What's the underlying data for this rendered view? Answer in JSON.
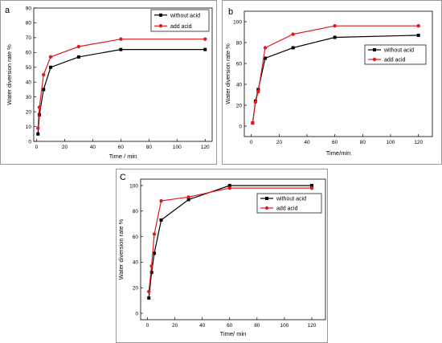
{
  "chart_data": [
    {
      "panel": "a",
      "type": "line",
      "xlabel": "Time / min",
      "ylabel": "Water diversion rate %",
      "xlim": [
        -2,
        125
      ],
      "ylim": [
        0,
        90
      ],
      "xticks": [
        0,
        20,
        40,
        60,
        80,
        100,
        120
      ],
      "yticks": [
        0,
        10,
        20,
        30,
        40,
        50,
        60,
        70,
        80,
        90
      ],
      "legend_position": "top-right",
      "series": [
        {
          "name": "without acid",
          "color": "#000000",
          "x": [
            1,
            2,
            5,
            10,
            30,
            60,
            120
          ],
          "y": [
            5,
            18,
            35,
            50,
            57,
            62,
            62
          ]
        },
        {
          "name": "add acid",
          "color": "#e31a1c",
          "x": [
            1,
            2,
            5,
            10,
            30,
            60,
            120
          ],
          "y": [
            9,
            23,
            45,
            57,
            64,
            69,
            69
          ]
        }
      ]
    },
    {
      "panel": "b",
      "type": "line",
      "xlabel": "Time/min",
      "ylabel": "Water diversion rate %",
      "xlim": [
        -5,
        130
      ],
      "ylim": [
        -10,
        110
      ],
      "xticks": [
        0,
        20,
        40,
        60,
        80,
        100,
        120
      ],
      "yticks": [
        0,
        20,
        40,
        60,
        80,
        100
      ],
      "legend_position": "right",
      "series": [
        {
          "name": "without acid",
          "color": "#000000",
          "x": [
            1,
            3,
            5,
            10,
            30,
            60,
            120
          ],
          "y": [
            3,
            24,
            35,
            65,
            75,
            85,
            87
          ]
        },
        {
          "name": "add acid",
          "color": "#e31a1c",
          "x": [
            1,
            3,
            5,
            10,
            30,
            60,
            120
          ],
          "y": [
            3,
            23,
            33,
            75,
            88,
            96,
            96
          ]
        }
      ]
    },
    {
      "panel": "C",
      "type": "line",
      "xlabel": "Time/ min",
      "ylabel": "Water diversion rate %",
      "xlim": [
        -5,
        130
      ],
      "ylim": [
        -5,
        105
      ],
      "xticks": [
        0,
        20,
        40,
        60,
        80,
        100,
        120
      ],
      "yticks": [
        0,
        20,
        40,
        60,
        80,
        100
      ],
      "legend_position": "top-right",
      "series": [
        {
          "name": "without acid",
          "color": "#000000",
          "x": [
            1,
            3,
            5,
            10,
            30,
            60,
            120
          ],
          "y": [
            12,
            32,
            47,
            73,
            89,
            100,
            100
          ]
        },
        {
          "name": "add acid",
          "color": "#e31a1c",
          "x": [
            1,
            3,
            5,
            10,
            30,
            60,
            120
          ],
          "y": [
            17,
            37,
            62,
            88,
            91,
            98,
            98
          ]
        }
      ]
    }
  ]
}
